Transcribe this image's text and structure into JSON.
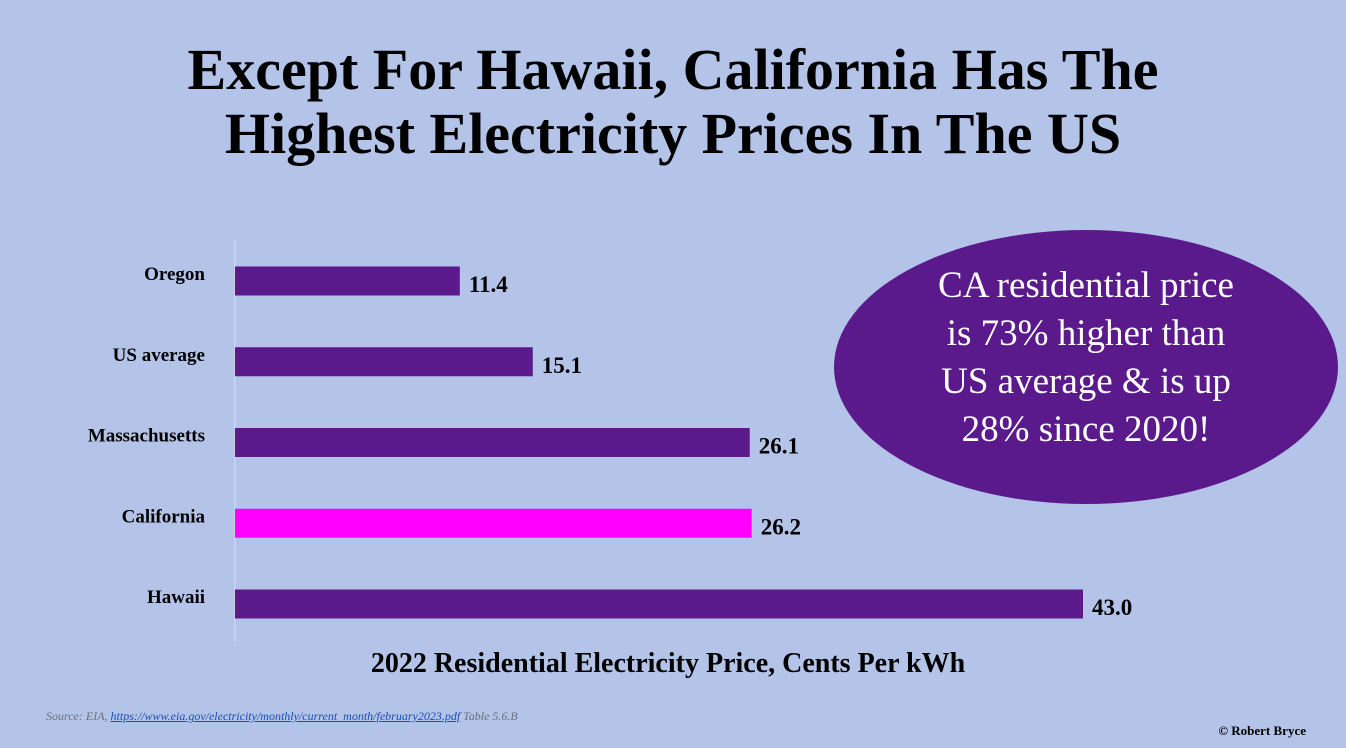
{
  "title_line1": "Except For Hawaii, California Has The",
  "title_line2": "Highest Electricity Prices In The US",
  "chart_data": {
    "type": "bar",
    "orientation": "horizontal",
    "categories": [
      "Oregon",
      "US average",
      "Massachusetts",
      "California",
      "Hawaii"
    ],
    "values": [
      11.4,
      15.1,
      26.1,
      26.2,
      43.0
    ],
    "value_labels": [
      "11.4",
      "15.1",
      "26.1",
      "26.2",
      "43.0"
    ],
    "xlabel": "2022 Residential Electricity Price, Cents Per kWh",
    "xlim": [
      0,
      43
    ],
    "grid": false,
    "colors": {
      "default": "#5b1a8b",
      "highlight": "#ff00ff",
      "highlight_category": "California"
    }
  },
  "callout": {
    "lines": [
      "CA residential price",
      "is 73% higher than",
      "US average & is up",
      "28% since 2020!"
    ],
    "fill": "#5b1a8b"
  },
  "footer": {
    "source_prefix": "Source: EIA,",
    "source_link": "https://www.eia.gov/electricity/monthly/current_month/february2023.pdf",
    "source_suffix": "Table 5.6.B",
    "copyright": "© Robert Bryce"
  }
}
